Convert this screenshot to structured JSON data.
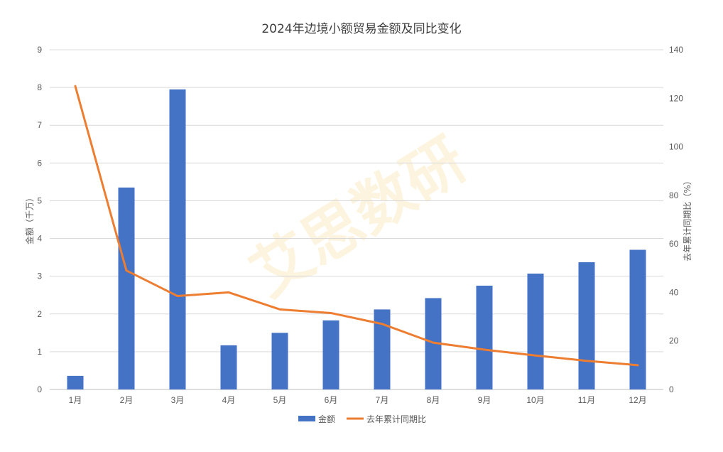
{
  "chart_data": {
    "type": "bar",
    "title": "2024年边境小额贸易金额及同比变化",
    "categories": [
      "1月",
      "2月",
      "3月",
      "4月",
      "5月",
      "6月",
      "7月",
      "8月",
      "9月",
      "10月",
      "11月",
      "12月"
    ],
    "series": [
      {
        "name": "金额",
        "type": "bar",
        "axis": "left",
        "color": "#4472c4",
        "values": [
          0.36,
          5.35,
          7.95,
          1.17,
          1.5,
          1.83,
          2.12,
          2.42,
          2.75,
          3.07,
          3.37,
          3.7
        ]
      },
      {
        "name": "去年累计同期比",
        "type": "line",
        "axis": "right",
        "color": "#ed7d31",
        "values": [
          125,
          49,
          38.5,
          40,
          33,
          31.5,
          27,
          19.3,
          16.4,
          14,
          11.8,
          10
        ]
      }
    ],
    "ylabel": "金额（千万）",
    "y2label": "去年累计同期比（%）",
    "ylim": [
      0,
      9
    ],
    "y2lim": [
      0,
      140
    ],
    "yticks": [
      "0",
      "1",
      "2",
      "3",
      "4",
      "5",
      "6",
      "7",
      "8",
      "9"
    ],
    "y2ticks": [
      "0",
      "20",
      "40",
      "60",
      "80",
      "100",
      "120",
      "140"
    ],
    "grid": true,
    "legend_position": "bottom"
  },
  "watermark": "艾思数研"
}
